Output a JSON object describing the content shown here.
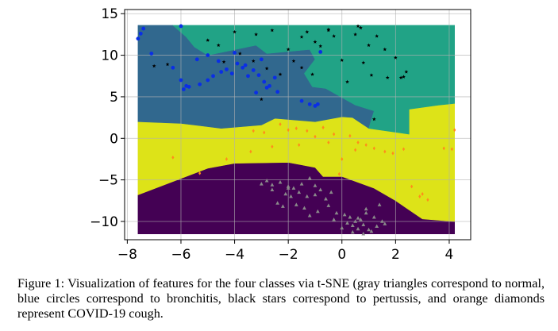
{
  "caption": "Figure 1: Visualization of features for the four classes via t-SNE (gray triangles correspond to normal, blue circles correspond to bronchitis, black stars correspond to pertussis, and orange diamonds represent COVID-19 cough.",
  "colors": {
    "region_purple": "#440154",
    "region_blue": "#31688e",
    "region_teal": "#21a386",
    "region_yellow": "#dde318",
    "normal": "#8a8a8a",
    "bronchitis": "#0a2ee6",
    "pertussis": "#000000",
    "covid": "#ff8c1a"
  },
  "chart_data": {
    "type": "scatter",
    "title": "",
    "xlabel": "",
    "ylabel": "",
    "xlim": [
      -8.1,
      4.8
    ],
    "ylim": [
      -12.2,
      15.5
    ],
    "xticks": [
      -8,
      -6,
      -4,
      -2,
      0,
      2,
      4
    ],
    "yticks": [
      -10,
      -5,
      0,
      5,
      10,
      15
    ],
    "xtick_labels": [
      "−8",
      "−6",
      "−4",
      "−2",
      "0",
      "2",
      "4"
    ],
    "ytick_labels": [
      "−10",
      "−5",
      "0",
      "5",
      "10",
      "15"
    ],
    "grid": true,
    "background": "decision regions (purple, yellow, blue, teal)",
    "regions": [
      {
        "class": "normal",
        "color": "#440154",
        "polygon": [
          [
            -7.6,
            -11.5
          ],
          [
            4.2,
            -11.5
          ],
          [
            4.2,
            -10.0
          ],
          [
            3.0,
            -9.7
          ],
          [
            2.0,
            -7.5
          ],
          [
            1.2,
            -6.0
          ],
          [
            0.0,
            -4.6
          ],
          [
            -0.7,
            -4.6
          ],
          [
            -1.0,
            -3.5
          ],
          [
            -2.0,
            -2.9
          ],
          [
            -4.0,
            -3.0
          ],
          [
            -5.0,
            -3.6
          ],
          [
            -7.6,
            -6.8
          ]
        ]
      },
      {
        "class": "covid",
        "color": "#dde318",
        "polygon": [
          [
            -7.6,
            -6.8
          ],
          [
            -5.0,
            -3.6
          ],
          [
            -4.0,
            -3.0
          ],
          [
            -2.0,
            -2.9
          ],
          [
            -1.0,
            -3.5
          ],
          [
            -0.7,
            -4.6
          ],
          [
            0.0,
            -4.6
          ],
          [
            1.2,
            -6.0
          ],
          [
            2.0,
            -7.5
          ],
          [
            3.0,
            -9.7
          ],
          [
            4.2,
            -10.0
          ],
          [
            4.2,
            4.2
          ],
          [
            3.6,
            4.0
          ],
          [
            2.5,
            3.5
          ],
          [
            2.5,
            0.5
          ],
          [
            1.0,
            1.2
          ],
          [
            0.4,
            2.5
          ],
          [
            0.0,
            2.6
          ],
          [
            -1.0,
            2.0
          ],
          [
            -2.5,
            2.4
          ],
          [
            -3.0,
            1.6
          ],
          [
            -4.5,
            1.2
          ],
          [
            -6.0,
            1.8
          ],
          [
            -7.6,
            2.0
          ]
        ]
      },
      {
        "class": "bronchitis",
        "color": "#31688e",
        "polygon": [
          [
            -7.6,
            2.0
          ],
          [
            -6.0,
            1.8
          ],
          [
            -4.5,
            1.2
          ],
          [
            -3.0,
            1.6
          ],
          [
            -2.5,
            2.4
          ],
          [
            -1.0,
            2.0
          ],
          [
            0.0,
            2.6
          ],
          [
            0.4,
            2.5
          ],
          [
            1.0,
            1.2
          ],
          [
            1.2,
            3.3
          ],
          [
            0.5,
            4.0
          ],
          [
            -0.6,
            6.0
          ],
          [
            -1.1,
            6.2
          ],
          [
            -1.4,
            7.8
          ],
          [
            -1.0,
            9.5
          ],
          [
            -1.2,
            10.7
          ],
          [
            -2.8,
            10.2
          ],
          [
            -3.2,
            11.2
          ],
          [
            -5.0,
            10.0
          ],
          [
            -5.5,
            11.0
          ],
          [
            -5.8,
            12.2
          ],
          [
            -6.3,
            13.6
          ],
          [
            -7.6,
            13.6
          ]
        ]
      },
      {
        "class": "pertussis",
        "color": "#21a386",
        "polygon": [
          [
            -6.3,
            13.6
          ],
          [
            4.2,
            13.6
          ],
          [
            4.2,
            4.2
          ],
          [
            3.6,
            4.0
          ],
          [
            2.5,
            3.5
          ],
          [
            2.5,
            0.5
          ],
          [
            1.0,
            1.2
          ],
          [
            1.2,
            3.3
          ],
          [
            0.5,
            4.0
          ],
          [
            -0.6,
            6.0
          ],
          [
            -1.1,
            6.2
          ],
          [
            -1.4,
            7.8
          ],
          [
            -1.0,
            9.5
          ],
          [
            -1.2,
            10.7
          ],
          [
            -2.8,
            10.2
          ],
          [
            -3.2,
            11.2
          ],
          [
            -5.0,
            10.0
          ],
          [
            -5.5,
            11.0
          ],
          [
            -5.8,
            12.2
          ]
        ]
      }
    ],
    "series": [
      {
        "marker": "triangle",
        "color": "#8a8a8a",
        "x": [
          -3.0,
          -2.8,
          -2.6,
          -2.3,
          -2.0,
          -1.8,
          -1.5,
          -1.2,
          -1.0,
          -0.8,
          -0.4,
          -2.6,
          -2.1,
          -1.9,
          -1.6,
          -1.3,
          -1.0,
          -0.6,
          -2.4,
          -2.2,
          -1.7,
          -1.4,
          -0.9,
          -0.5,
          -0.2,
          0.1,
          0.3,
          0.5,
          0.7,
          0.9,
          1.2,
          1.5,
          0.2,
          0.4,
          0.6,
          0.8,
          1.0,
          1.3,
          1.6,
          -0.3,
          0.0,
          0.9,
          1.4,
          1.1,
          0.4,
          0.6,
          0.8,
          -2.0,
          -1.2
        ],
        "y": [
          -5.5,
          -5.1,
          -5.6,
          -5.3,
          -5.8,
          -6.0,
          -5.5,
          -4.8,
          -5.7,
          -6.2,
          -6.5,
          -6.2,
          -6.7,
          -7.0,
          -6.5,
          -7.0,
          -6.8,
          -7.3,
          -7.8,
          -8.2,
          -8.0,
          -8.4,
          -8.8,
          -8.1,
          -9.0,
          -9.2,
          -9.5,
          -10.0,
          -9.8,
          -9.0,
          -9.5,
          -10.0,
          -10.2,
          -10.5,
          -10.9,
          -10.4,
          -11.0,
          -10.6,
          -10.3,
          -9.8,
          -10.8,
          -8.5,
          -8.0,
          -11.2,
          -11.3,
          -9.6,
          -11.5,
          -6.0,
          -9.3
        ]
      },
      {
        "marker": "circle",
        "color": "#0a2ee6",
        "x": [
          -7.6,
          -7.4,
          -7.5,
          -6.0,
          -7.1,
          -6.3,
          -6.0,
          -5.8,
          -5.9,
          -5.7,
          -5.3,
          -5.0,
          -4.8,
          -4.5,
          -4.3,
          -4.1,
          -3.9,
          -3.7,
          -3.5,
          -3.3,
          -3.1,
          -2.9,
          -2.7,
          -2.5,
          -5.4,
          -5.0,
          -4.6,
          -4.0,
          -3.6,
          -3.0,
          -2.8,
          -1.5,
          -1.2,
          -1.0,
          -0.8,
          -2.4,
          -3.2,
          -0.9
        ],
        "y": [
          12.0,
          13.2,
          12.6,
          13.5,
          10.2,
          8.5,
          7.0,
          6.3,
          5.9,
          6.2,
          6.5,
          7.0,
          7.5,
          8.0,
          8.3,
          7.8,
          9.0,
          8.5,
          7.5,
          8.2,
          7.6,
          6.8,
          6.3,
          7.3,
          9.5,
          10.0,
          9.3,
          10.3,
          8.8,
          9.5,
          6.1,
          4.5,
          4.1,
          3.9,
          10.4,
          5.6,
          5.5,
          4.1
        ]
      },
      {
        "marker": "star",
        "color": "#000000",
        "x": [
          -7.0,
          -6.5,
          -5.0,
          -4.6,
          -4.4,
          -4.0,
          -3.8,
          -3.3,
          -3.2,
          -2.8,
          -2.6,
          -2.3,
          -2.0,
          -1.8,
          -1.5,
          -1.3,
          -1.0,
          -0.8,
          -0.5,
          -0.3,
          0.0,
          0.2,
          0.5,
          0.7,
          1.0,
          1.3,
          1.6,
          2.0,
          2.2,
          2.4,
          -1.1,
          -0.5,
          0.8,
          1.1,
          1.7,
          2.3,
          -3.0,
          0.6,
          1.2,
          -1.5
        ],
        "y": [
          8.7,
          8.9,
          11.8,
          11.2,
          9.2,
          12.8,
          10.2,
          9.3,
          12.5,
          8.4,
          13.0,
          7.7,
          10.7,
          9.3,
          12.2,
          12.8,
          11.6,
          11.1,
          13.1,
          12.3,
          9.4,
          6.8,
          12.5,
          13.3,
          11.2,
          12.3,
          10.7,
          9.7,
          7.3,
          8.0,
          7.7,
          13.0,
          9.1,
          7.6,
          7.3,
          7.4,
          4.7,
          13.5,
          2.3,
          8.5
        ],
        "note": ""
      },
      {
        "marker": "diamond",
        "color": "#ff8c1a",
        "x": [
          -6.3,
          -5.3,
          -4.3,
          -3.4,
          -3.3,
          -2.9,
          -2.3,
          -2.0,
          -1.7,
          -1.3,
          -1.0,
          -0.7,
          -0.5,
          -0.3,
          0.0,
          0.3,
          0.6,
          0.9,
          1.2,
          1.6,
          1.9,
          2.3,
          2.6,
          2.9,
          3.0,
          3.2,
          3.8,
          4.1,
          4.2,
          -0.1,
          0.5,
          -1.6,
          -2.6
        ],
        "y": [
          -2.3,
          -4.2,
          -2.5,
          -1.6,
          0.9,
          0.7,
          1.7,
          1.0,
          1.2,
          0.9,
          0.2,
          1.3,
          -0.5,
          0.5,
          -2.5,
          0.3,
          -0.5,
          -0.8,
          -1.2,
          -1.6,
          -1.8,
          -1.3,
          -5.8,
          -7.0,
          -6.7,
          -7.4,
          -1.2,
          -1.3,
          1.0,
          -4.3,
          -1.4,
          -0.8,
          -1.0
        ]
      }
    ]
  }
}
